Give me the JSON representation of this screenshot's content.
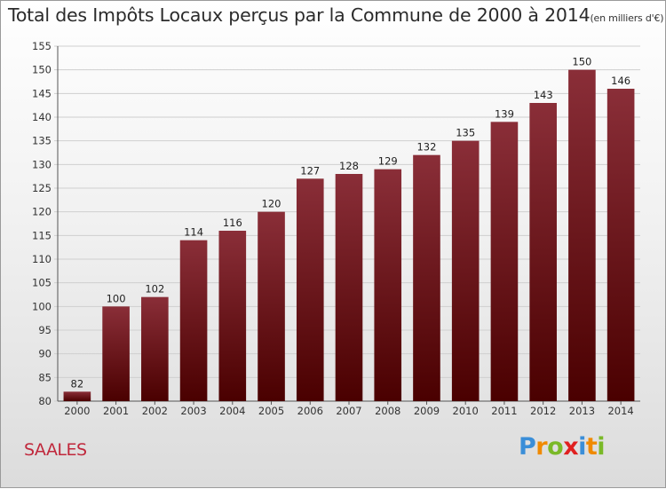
{
  "title": "Total des Impôts Locaux perçus par la Commune de 2000 à 2014",
  "unit": "(en milliers d'€)",
  "commune": "SAALES",
  "logo": {
    "letters": [
      "P",
      "r",
      "o",
      "x",
      "i",
      "t",
      "i"
    ],
    "colors": [
      "#3a8ed8",
      "#f08a00",
      "#7ab928",
      "#e02020",
      "#3a8ed8",
      "#f08a00",
      "#7ab928"
    ]
  },
  "colors": {
    "bar_top": "#8a2e38",
    "bar_bottom": "#4a0000",
    "label": "#222222"
  },
  "chart_data": {
    "type": "bar",
    "title": "Total des Impôts Locaux perçus par la Commune de 2000 à 2014",
    "xlabel": "",
    "ylabel": "",
    "categories": [
      "2000",
      "2001",
      "2002",
      "2003",
      "2004",
      "2005",
      "2006",
      "2007",
      "2008",
      "2009",
      "2010",
      "2011",
      "2012",
      "2013",
      "2014"
    ],
    "values": [
      82,
      100,
      102,
      114,
      116,
      120,
      127,
      128,
      129,
      132,
      135,
      139,
      143,
      150,
      146
    ],
    "ylim": [
      80,
      155
    ],
    "yticks": [
      80,
      85,
      90,
      95,
      100,
      105,
      110,
      115,
      120,
      125,
      130,
      135,
      140,
      145,
      150,
      155
    ],
    "grid": true,
    "data_labels": true
  }
}
